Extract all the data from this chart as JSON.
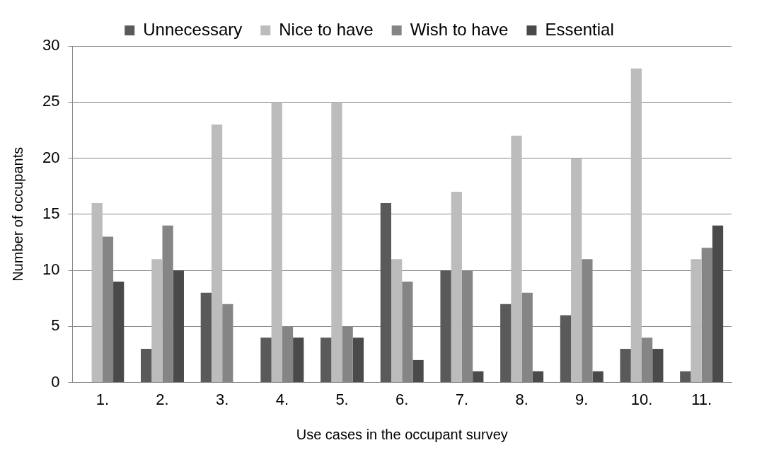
{
  "chart_data": {
    "type": "bar",
    "xlabel": "Use cases in the occupant survey",
    "ylabel": "Number of occupants",
    "categories": [
      "1.",
      "2.",
      "3.",
      "4.",
      "5.",
      "6.",
      "7.",
      "8.",
      "9.",
      "10.",
      "11."
    ],
    "series": [
      {
        "name": "Unnecessary",
        "color": "#5a5a5a",
        "values": [
          0,
          3,
          8,
          4,
          4,
          16,
          10,
          7,
          6,
          3,
          1
        ]
      },
      {
        "name": "Nice to have",
        "color": "#bcbcbc",
        "values": [
          16,
          11,
          23,
          25,
          25,
          11,
          17,
          22,
          20,
          28,
          11
        ]
      },
      {
        "name": "Wish to have",
        "color": "#858585",
        "values": [
          13,
          14,
          7,
          5,
          5,
          9,
          10,
          8,
          11,
          4,
          12
        ]
      },
      {
        "name": "Essential",
        "color": "#4a4a4a",
        "values": [
          9,
          10,
          0,
          4,
          4,
          2,
          1,
          1,
          1,
          3,
          14
        ]
      }
    ],
    "ylim": [
      0,
      30
    ],
    "yticks": [
      0,
      5,
      10,
      15,
      20,
      25,
      30
    ],
    "grid": "y",
    "legend": "top"
  }
}
